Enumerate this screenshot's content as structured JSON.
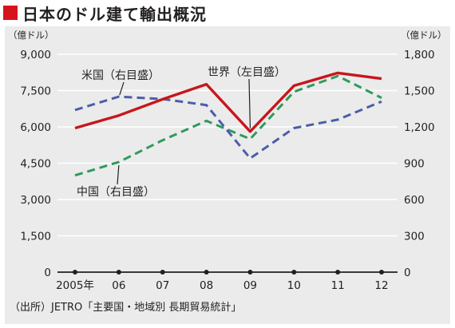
{
  "title": "日本のドル建て輸出概況",
  "source": "（出所）JETRO「主要国・地域別 長期貿易統計」",
  "chart_data": {
    "type": "line",
    "title": "日本のドル建て輸出概況",
    "categories": [
      "2005年",
      "06",
      "07",
      "08",
      "09",
      "10",
      "11",
      "12"
    ],
    "left_axis": {
      "unit": "（億ドル）",
      "ylim": [
        0,
        9000
      ],
      "ticks": [
        "0",
        "1,500",
        "3,000",
        "4,500",
        "6,000",
        "7,500",
        "9,000"
      ],
      "tick_values": [
        0,
        1500,
        3000,
        4500,
        6000,
        7500,
        9000
      ]
    },
    "right_axis": {
      "unit": "（億ドル）",
      "ylim": [
        0,
        1800
      ],
      "ticks": [
        "0",
        "300",
        "600",
        "900",
        "1,200",
        "1,500",
        "1,800"
      ],
      "tick_values": [
        0,
        300,
        600,
        900,
        1200,
        1500,
        1800
      ]
    },
    "grid": true,
    "series": [
      {
        "name": "世界（左目盛）",
        "axis": "left",
        "style": "solid",
        "color": "#c8161d",
        "values": [
          5950,
          6470,
          7140,
          7760,
          5810,
          7700,
          8230,
          7990
        ]
      },
      {
        "name": "米国（右目盛）",
        "axis": "right",
        "style": "dashed",
        "color": "#4b5ea8",
        "values": [
          1340,
          1450,
          1430,
          1380,
          940,
          1190,
          1260,
          1410
        ]
      },
      {
        "name": "中国（右目盛）",
        "axis": "right",
        "style": "dashed",
        "color": "#2e9b5c",
        "values": [
          800,
          910,
          1090,
          1250,
          1100,
          1490,
          1620,
          1440
        ]
      }
    ]
  }
}
